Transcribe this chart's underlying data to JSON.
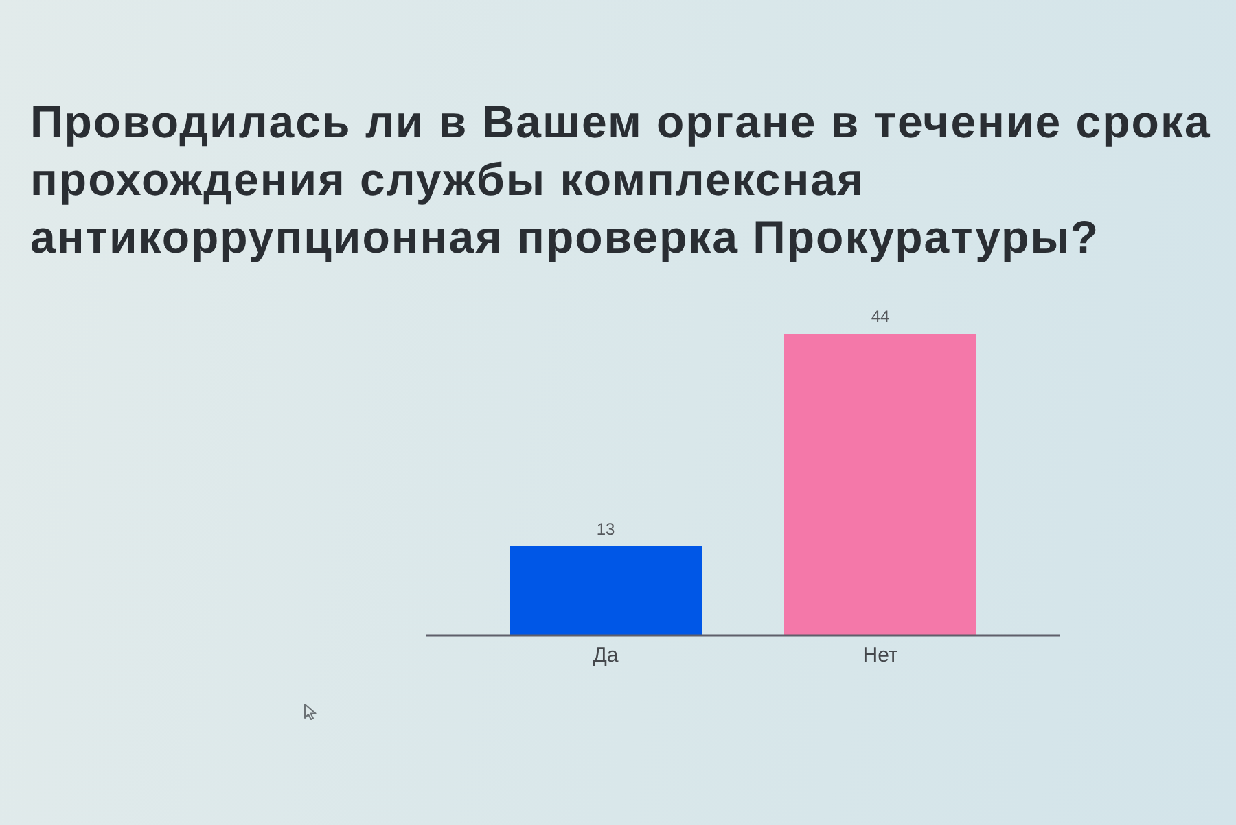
{
  "chart_data": {
    "type": "bar",
    "title": "Проводилась ли в Вашем органе в течение срока прохождения службы комплексная антикоррупционная проверка Прокуратуры?",
    "categories": [
      "Да",
      "Нет"
    ],
    "values": [
      13,
      44
    ],
    "colors": [
      "#0057e7",
      "#f478a9"
    ],
    "data_labels": true
  }
}
